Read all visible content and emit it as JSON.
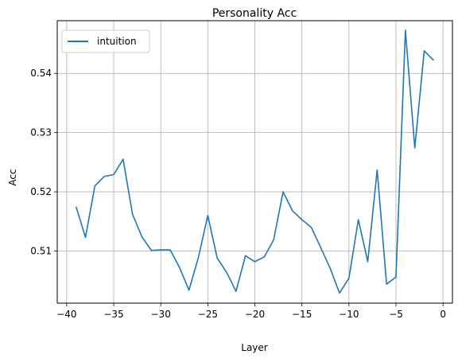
{
  "chart_data": {
    "type": "line",
    "title": "Personality Acc",
    "xlabel": "Layer",
    "ylabel": "Acc",
    "xlim": [
      -41.0,
      1.0
    ],
    "ylim": [
      0.5012,
      0.5489
    ],
    "xticks": [
      -40,
      -35,
      -30,
      -25,
      -20,
      -15,
      -10,
      -5,
      0
    ],
    "xtick_labels": [
      "−40",
      "−35",
      "−30",
      "−25",
      "−20",
      "−15",
      "−10",
      "−5",
      "0"
    ],
    "yticks": [
      0.51,
      0.52,
      0.53,
      0.54
    ],
    "ytick_labels": [
      "0.51",
      "0.52",
      "0.53",
      "0.54"
    ],
    "grid": true,
    "legend_position": "upper-left",
    "colors": {
      "series": "#1f77b4",
      "grid": "#b0b0b0",
      "axis": "#000000"
    },
    "series": [
      {
        "name": "intuition",
        "x": [
          -39,
          -38,
          -37,
          -36,
          -35,
          -34,
          -33,
          -32,
          -31,
          -30,
          -29,
          -28,
          -27,
          -26,
          -25,
          -24,
          -23,
          -22,
          -21,
          -20,
          -19,
          -18,
          -17,
          -16,
          -15,
          -14,
          -13,
          -12,
          -11,
          -10,
          -9,
          -8,
          -7,
          -6,
          -5,
          -4,
          -3,
          -2,
          -1
        ],
        "values": [
          0.5175,
          0.5123,
          0.521,
          0.5226,
          0.5229,
          0.5255,
          0.5162,
          0.5124,
          0.5101,
          0.5102,
          0.5102,
          0.5072,
          0.5034,
          0.5089,
          0.516,
          0.5088,
          0.5064,
          0.5032,
          0.5092,
          0.5082,
          0.509,
          0.5119,
          0.52,
          0.5168,
          0.5153,
          0.514,
          0.5106,
          0.5071,
          0.5029,
          0.5054,
          0.5153,
          0.5082,
          0.5237,
          0.5044,
          0.5056,
          0.5473,
          0.5274,
          0.5438,
          0.5422
        ]
      }
    ]
  }
}
